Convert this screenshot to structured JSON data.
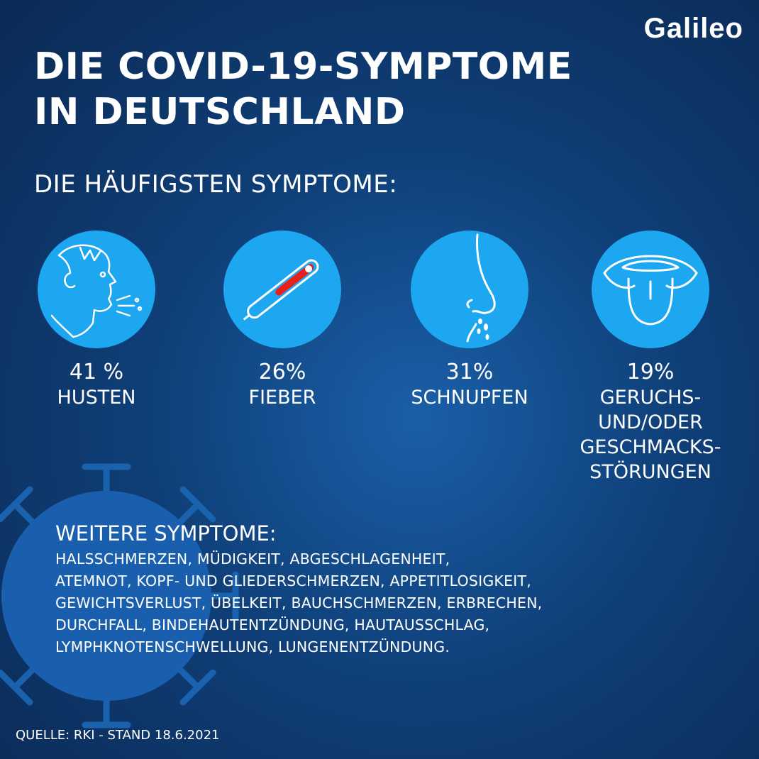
{
  "brand": {
    "logo_text": "Galileo"
  },
  "header": {
    "title_line1": "DIE COVID-19-SYMPTOME",
    "title_line2": "IN DEUTSCHLAND",
    "subtitle": "DIE HÄUFIGSTEN SYMPTOME:"
  },
  "symptoms": [
    {
      "percent": "41 %",
      "label": "HUSTEN",
      "icon": "coughing-person-icon"
    },
    {
      "percent": "26%",
      "label": "FIEBER",
      "icon": "thermometer-icon"
    },
    {
      "percent": "31%",
      "label": "SCHNUPFEN",
      "icon": "sneezing-nose-icon"
    },
    {
      "percent": "19%",
      "label_lines": [
        "GERUCHS-",
        "UND/ODER",
        "GESCHMACKS-",
        "STÖRUNGEN"
      ],
      "icon": "tongue-icon"
    }
  ],
  "more": {
    "title": "WEITERE SYMPTOME:",
    "lines": [
      "HALSSCHMERZEN, MÜDIGKEIT, ABGESCHLAGENHEIT,",
      "ATEMNOT, KOPF- UND GLIEDERSCHMERZEN, APPETITLOSIGKEIT,",
      "GEWICHTSVERLUST, ÜBELKEIT, BAUCHSCHMERZEN, ERBRECHEN,",
      "DURCHFALL, BINDEHAUTENTZÜNDUNG, HAUTAUSSCHLAG,",
      "LYMPHKNOTENSCHWELLUNG, LUNGENENTZÜNDUNG."
    ]
  },
  "source": "QUELLE: RKI - STAND 18.6.2021",
  "colors": {
    "icon_circle": "#1ca7f0",
    "background": "#0f3f78",
    "thermometer_fill": "#e8221b"
  }
}
